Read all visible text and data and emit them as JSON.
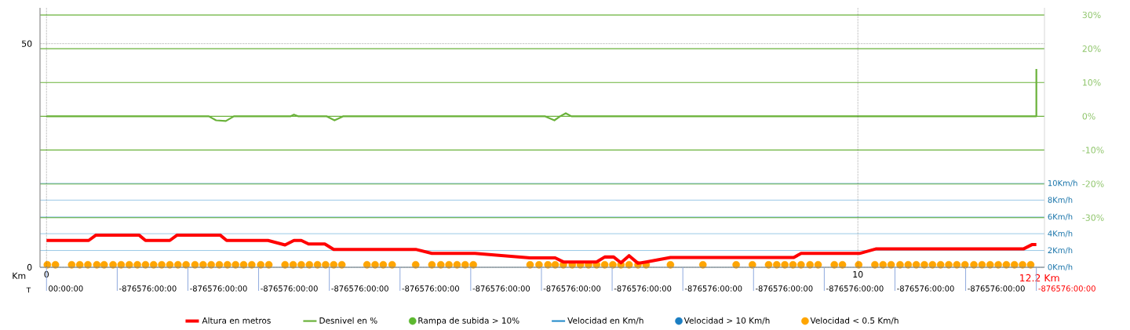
{
  "chart_data": {
    "type": "line",
    "xlabel": "Km",
    "xlim": [
      -0.08,
      12.3
    ],
    "xticks": [
      0,
      10
    ],
    "ylim": [
      0,
      58
    ],
    "yticks": [
      0,
      50
    ],
    "y2lim": [
      -44.7,
      32.1
    ],
    "y2ticks": [
      {
        "value": 30,
        "label": "30%"
      },
      {
        "value": 20,
        "label": "20%"
      },
      {
        "value": 10,
        "label": "10%"
      },
      {
        "value": 0,
        "label": "0%"
      },
      {
        "value": -10,
        "label": "-10%"
      },
      {
        "value": -20,
        "label": "-20%"
      },
      {
        "value": -30,
        "label": "-30%"
      }
    ],
    "y3lim": [
      0,
      30.9
    ],
    "y3ticks": [
      {
        "value": 10,
        "label": "10Km/h"
      },
      {
        "value": 8,
        "label": "8Km/h"
      },
      {
        "value": 6,
        "label": "6Km/h"
      },
      {
        "value": 4,
        "label": "4Km/h"
      },
      {
        "value": 2,
        "label": "2Km/h"
      },
      {
        "value": 0,
        "label": "0Km/h"
      }
    ],
    "grid": true,
    "legend": "bottom",
    "annotations": [
      "12.2 Km",
      "T",
      "00:00:00",
      "-876576:00:00",
      "-876576:00:00",
      "-876576:00:00",
      "-876576:00:00",
      "-876576:00:00",
      "-876576:00:00",
      "-876576:00:00",
      "-876576:00:00",
      "-876576:00:00",
      "-876576:00:00",
      "-876576:00:00",
      "-876576:00:00",
      "-876576:00:00",
      "-876576:00:00"
    ],
    "series": [
      {
        "name": "Altura en metros",
        "color": "#ff0000",
        "x": [
          0,
          0.52,
          0.61,
          1.14,
          1.22,
          1.52,
          1.61,
          2.14,
          2.22,
          2.73,
          2.94,
          3.05,
          3.14,
          3.23,
          3.43,
          3.54,
          4.55,
          4.75,
          5.28,
          5.96,
          6.27,
          6.37,
          6.78,
          6.88,
          6.99,
          7.08,
          7.18,
          7.29,
          7.39,
          7.69,
          9.21,
          9.3,
          10.02,
          10.22,
          12.04,
          12.15,
          12.2
        ],
        "values": [
          6.0,
          6.0,
          7.2,
          7.2,
          6.0,
          6.0,
          7.2,
          7.2,
          6.0,
          6.0,
          5.0,
          6.0,
          6.0,
          5.2,
          5.2,
          4.0,
          4.0,
          3.1,
          3.1,
          2.1,
          2.1,
          1.2,
          1.2,
          2.3,
          2.3,
          1.0,
          2.6,
          0.9,
          1.2,
          2.2,
          2.2,
          3.1,
          3.1,
          4.1,
          4.1,
          5.1,
          5.1
        ]
      },
      {
        "name": "Desnivel en %",
        "color": "#6ab23a",
        "axis": "y2",
        "x": [
          0,
          2.0,
          2.09,
          2.21,
          2.31,
          3.01,
          3.05,
          3.1,
          3.45,
          3.55,
          3.66,
          6.14,
          6.26,
          6.33,
          6.4,
          6.47,
          12.2,
          12.2
        ],
        "values": [
          0,
          0,
          -1.2,
          -1.4,
          0,
          0,
          0.5,
          0,
          0,
          -1.2,
          0,
          0,
          -1.2,
          0,
          0.9,
          0,
          0,
          14
        ]
      },
      {
        "name": "Rampa de subida > 10%",
        "type": "scatter",
        "color": "#5cb82f",
        "axis": "y2"
      },
      {
        "name": "Velocidad en Km/h",
        "type": "line",
        "color": "#1e88c8",
        "axis": "y3"
      },
      {
        "name": "Velocidad > 10 Km/h",
        "type": "scatter",
        "color": "#1b7ec2",
        "axis": "y3"
      },
      {
        "name": "Velocidad < 0.5 Km/h",
        "type": "scatter",
        "color": "#ffa500",
        "axis": "y3",
        "x": [
          0.01,
          0.11,
          0.31,
          0.41,
          0.51,
          0.62,
          0.71,
          0.82,
          0.92,
          1.02,
          1.12,
          1.22,
          1.32,
          1.42,
          1.52,
          1.62,
          1.72,
          1.83,
          1.93,
          2.03,
          2.13,
          2.23,
          2.33,
          2.43,
          2.53,
          2.64,
          2.74,
          2.94,
          3.04,
          3.14,
          3.24,
          3.34,
          3.44,
          3.54,
          3.64,
          3.95,
          4.05,
          4.15,
          4.26,
          4.55,
          4.75,
          4.86,
          4.96,
          5.06,
          5.16,
          5.26,
          5.96,
          6.07,
          6.18,
          6.27,
          6.37,
          6.48,
          6.58,
          6.68,
          6.78,
          6.88,
          6.98,
          7.08,
          7.18,
          7.29,
          7.39,
          7.69,
          8.09,
          8.5,
          8.7,
          8.9,
          9.0,
          9.1,
          9.2,
          9.3,
          9.41,
          9.51,
          9.71,
          9.81,
          10.01,
          10.21,
          10.31,
          10.41,
          10.52,
          10.62,
          10.72,
          10.82,
          10.92,
          11.02,
          11.12,
          11.22,
          11.32,
          11.43,
          11.53,
          11.63,
          11.73,
          11.83,
          11.93,
          12.03,
          12.13
        ],
        "values": [
          0.3,
          0.3,
          0.3,
          0.3,
          0.3,
          0.3,
          0.3,
          0.3,
          0.3,
          0.3,
          0.3,
          0.3,
          0.3,
          0.3,
          0.3,
          0.3,
          0.3,
          0.3,
          0.3,
          0.3,
          0.3,
          0.3,
          0.3,
          0.3,
          0.3,
          0.3,
          0.3,
          0.3,
          0.3,
          0.3,
          0.3,
          0.3,
          0.3,
          0.3,
          0.3,
          0.3,
          0.3,
          0.3,
          0.3,
          0.3,
          0.3,
          0.3,
          0.3,
          0.3,
          0.3,
          0.3,
          0.3,
          0.3,
          0.3,
          0.3,
          0.3,
          0.3,
          0.3,
          0.3,
          0.3,
          0.3,
          0.3,
          0.3,
          0.3,
          0.3,
          0.3,
          0.3,
          0.3,
          0.3,
          0.3,
          0.3,
          0.3,
          0.3,
          0.3,
          0.3,
          0.3,
          0.3,
          0.3,
          0.3,
          0.3,
          0.3,
          0.3,
          0.3,
          0.3,
          0.3,
          0.3,
          0.3,
          0.3,
          0.3,
          0.3,
          0.3,
          0.3,
          0.3,
          0.3,
          0.3,
          0.3,
          0.3,
          0.3,
          0.3,
          0.3
        ]
      }
    ]
  }
}
